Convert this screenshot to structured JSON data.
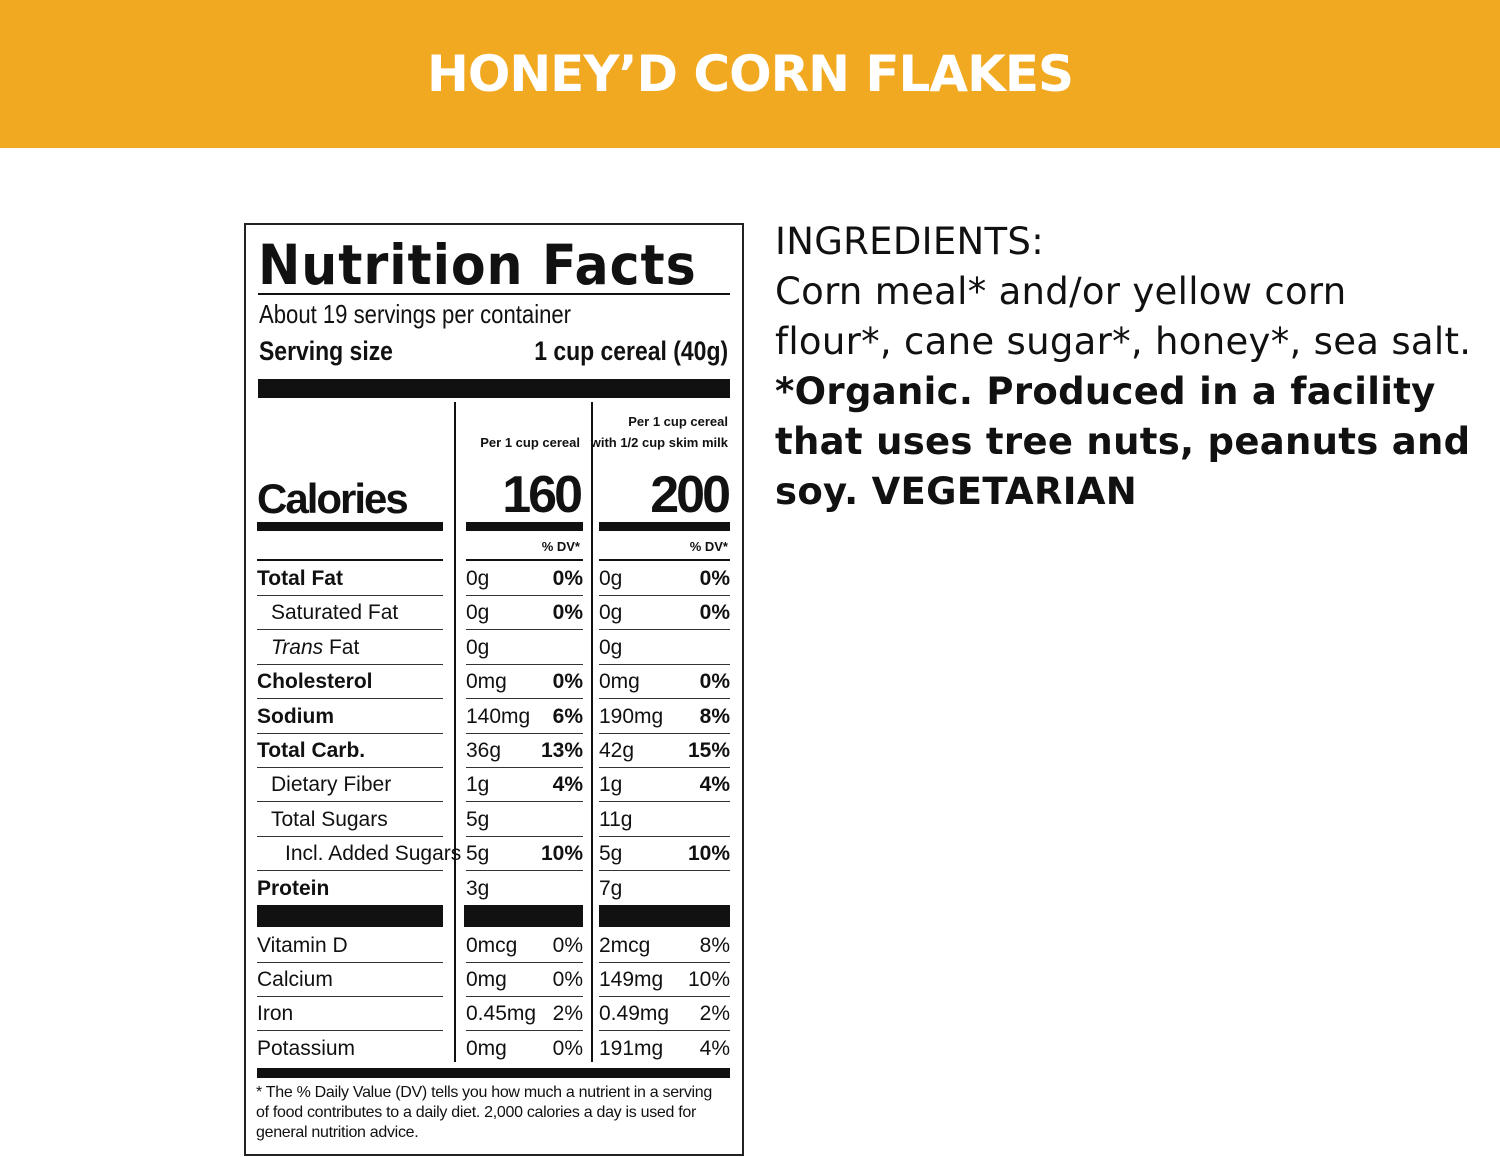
{
  "banner": {
    "title": "HONEY’D CORN FLAKES",
    "color": "#F2A922"
  },
  "label": {
    "title": "Nutrition Facts",
    "servings": "About 19 servings per container",
    "serving_size_label": "Serving size",
    "serving_size_value": "1 cup cereal (40g)",
    "col1_header": "Per 1 cup cereal",
    "col2_header_line1": "Per 1 cup cereal",
    "col2_header_line2": "with 1/2 cup skim milk",
    "calories_label": "Calories",
    "calories_col1": "160",
    "calories_col2": "200",
    "dv_header": "% DV*",
    "nutrients": [
      {
        "name": "Total Fat",
        "bold": true,
        "indent": 0,
        "c1": "0g",
        "p1": "0%",
        "c2": "0g",
        "p2": "0%"
      },
      {
        "name": "Saturated Fat",
        "bold": false,
        "indent": 1,
        "c1": "0g",
        "p1": "0%",
        "c2": "0g",
        "p2": "0%"
      },
      {
        "name": "Trans Fat",
        "bold": false,
        "indent": 1,
        "italic_prefix": "Trans",
        "c1": "0g",
        "p1": "",
        "c2": "0g",
        "p2": ""
      },
      {
        "name": "Cholesterol",
        "bold": true,
        "indent": 0,
        "c1": "0mg",
        "p1": "0%",
        "c2": "0mg",
        "p2": "0%"
      },
      {
        "name": "Sodium",
        "bold": true,
        "indent": 0,
        "c1": "140mg",
        "p1": "6%",
        "c2": "190mg",
        "p2": "8%"
      },
      {
        "name": "Total Carb.",
        "bold": true,
        "indent": 0,
        "c1": "36g",
        "p1": "13%",
        "c2": "42g",
        "p2": "15%"
      },
      {
        "name": "Dietary Fiber",
        "bold": false,
        "indent": 1,
        "c1": "1g",
        "p1": "4%",
        "c2": "1g",
        "p2": "4%"
      },
      {
        "name": "Total Sugars",
        "bold": false,
        "indent": 1,
        "c1": "5g",
        "p1": "",
        "c2": "11g",
        "p2": ""
      },
      {
        "name": "Incl. Added Sugars",
        "bold": false,
        "indent": 2,
        "c1": "5g",
        "p1": "10%",
        "c2": "5g",
        "p2": "10%"
      },
      {
        "name": "Protein",
        "bold": true,
        "indent": 0,
        "c1": "3g",
        "p1": "",
        "c2": "7g",
        "p2": ""
      }
    ],
    "vitamins": [
      {
        "name": "Vitamin D",
        "c1": "0mcg",
        "p1": "0%",
        "c2": "2mcg",
        "p2": "8%"
      },
      {
        "name": "Calcium",
        "c1": "0mg",
        "p1": "0%",
        "c2": "149mg",
        "p2": "10%"
      },
      {
        "name": "Iron",
        "c1": "0.45mg",
        "p1": "2%",
        "c2": "0.49mg",
        "p2": "2%"
      },
      {
        "name": "Potassium",
        "c1": "0mg",
        "p1": "0%",
        "c2": "191mg",
        "p2": "4%"
      }
    ],
    "footnote": "* The % Daily Value (DV) tells you how much a nutrient in a serving of food contributes to a daily diet. 2,000 calories a day is used for general nutrition advice."
  },
  "ingredients": {
    "heading": "INGREDIENTS:",
    "text": "Corn meal* and/or yellow corn flour*, cane sugar*, honey*, sea salt.",
    "bold_text": "*Organic. Produced in a facility that uses tree nuts, peanuts and soy. VEGETARIAN"
  }
}
